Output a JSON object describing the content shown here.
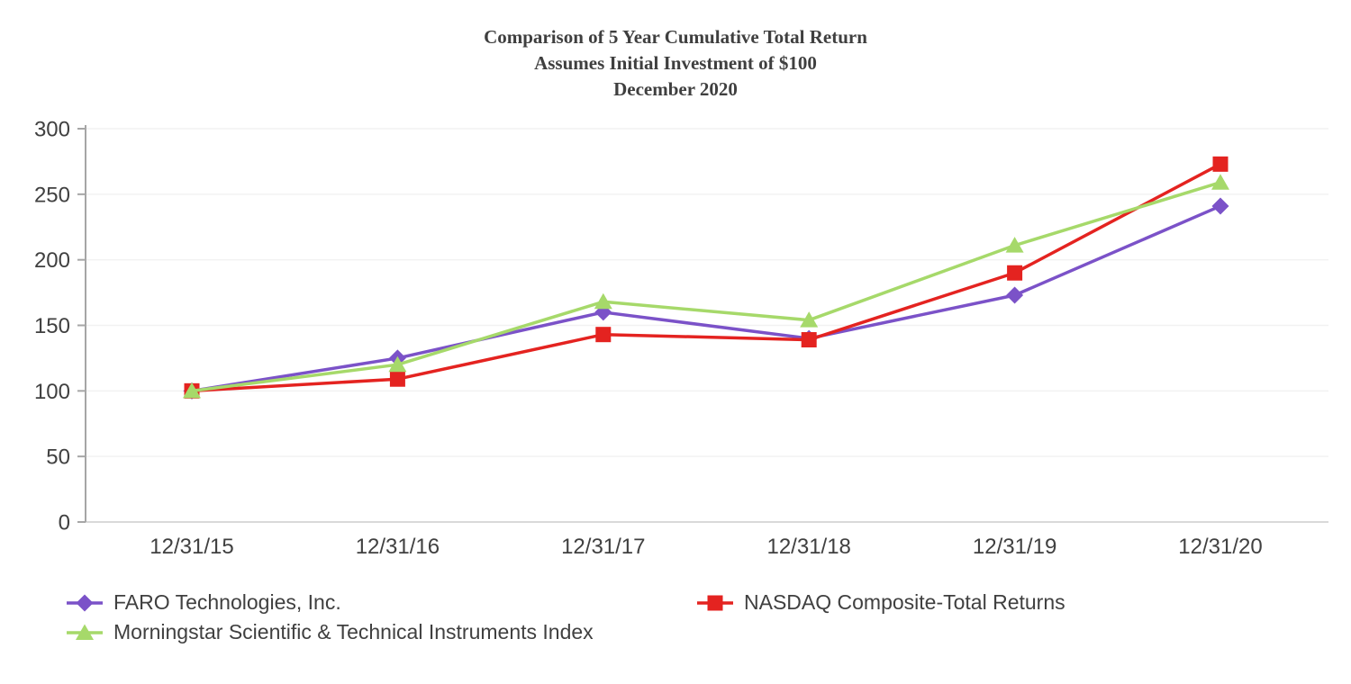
{
  "title": {
    "line1": "Comparison of 5 Year Cumulative Total Return",
    "line2": "Assumes Initial Investment of $100",
    "line3": "December 2020"
  },
  "chart_data": {
    "type": "line",
    "categories": [
      "12/31/15",
      "12/31/16",
      "12/31/17",
      "12/31/18",
      "12/31/19",
      "12/31/20"
    ],
    "series": [
      {
        "name": "FARO Technologies, Inc.",
        "marker": "diamond",
        "color": "#7B52C8",
        "values": [
          100,
          125,
          160,
          140,
          173,
          241
        ]
      },
      {
        "name": "NASDAQ Composite-Total Returns",
        "marker": "square",
        "color": "#E42320",
        "values": [
          100,
          109,
          143,
          139,
          190,
          273
        ]
      },
      {
        "name": "Morningstar Scientific & Technical Instruments Index",
        "marker": "triangle",
        "color": "#A6D96A",
        "values": [
          100,
          120,
          168,
          154,
          211,
          259
        ]
      }
    ],
    "ylim": [
      0,
      300
    ],
    "yticks": [
      0,
      50,
      100,
      150,
      200,
      250,
      300
    ],
    "grid": true,
    "legend_position": "bottom-left"
  },
  "style_colors": {
    "axis_text": "#404040",
    "y_axis_line": "#a6a6a6",
    "x_axis_line": "#d9d9d9",
    "gridline": "#f2f2f2"
  }
}
